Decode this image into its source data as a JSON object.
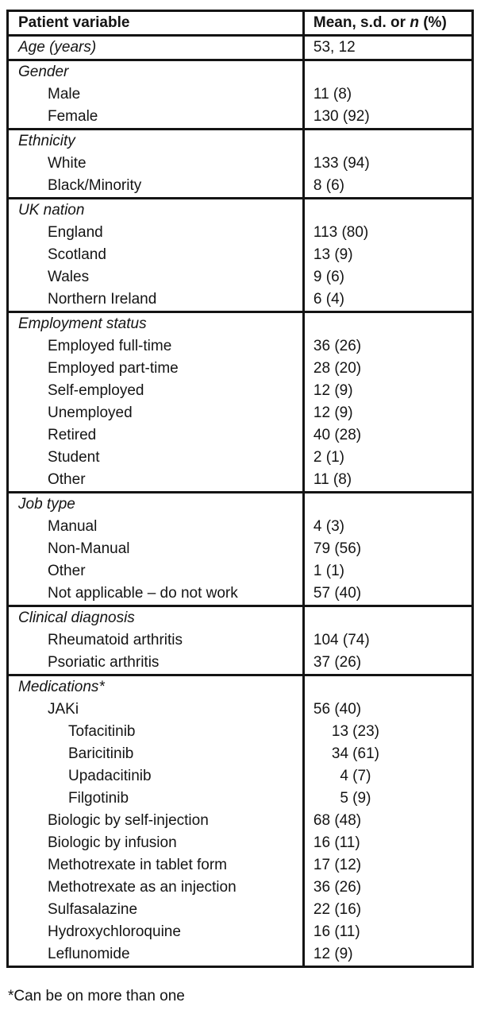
{
  "table": {
    "header": {
      "col1": "Patient variable",
      "col2_prefix": "Mean, s.d. or ",
      "col2_italic": "n",
      "col2_suffix": " (%)"
    },
    "sections": [
      {
        "id": "age",
        "rows": [
          {
            "label": "Age (years)",
            "level": 0,
            "italic": true,
            "value": "53, 12"
          }
        ]
      },
      {
        "id": "gender",
        "rows": [
          {
            "label": "Gender",
            "level": 0,
            "italic": true,
            "value": ""
          },
          {
            "label": "Male",
            "level": 1,
            "value": "11 (8)"
          },
          {
            "label": "Female",
            "level": 1,
            "value": "130 (92)"
          }
        ]
      },
      {
        "id": "ethnicity",
        "rows": [
          {
            "label": "Ethnicity",
            "level": 0,
            "italic": true,
            "value": ""
          },
          {
            "label": "White",
            "level": 1,
            "value": "133 (94)"
          },
          {
            "label": "Black/Minority",
            "level": 1,
            "value": "8 (6)"
          }
        ]
      },
      {
        "id": "uk-nation",
        "rows": [
          {
            "label": "UK nation",
            "level": 0,
            "italic": true,
            "value": ""
          },
          {
            "label": "England",
            "level": 1,
            "value": "113 (80)"
          },
          {
            "label": "Scotland",
            "level": 1,
            "value": "13 (9)"
          },
          {
            "label": "Wales",
            "level": 1,
            "value": "9 (6)"
          },
          {
            "label": "Northern Ireland",
            "level": 1,
            "value": "6 (4)"
          }
        ]
      },
      {
        "id": "employment-status",
        "rows": [
          {
            "label": "Employment status",
            "level": 0,
            "italic": true,
            "value": ""
          },
          {
            "label": "Employed full-time",
            "level": 1,
            "value": "36 (26)"
          },
          {
            "label": "Employed part-time",
            "level": 1,
            "value": "28 (20)"
          },
          {
            "label": "Self-employed",
            "level": 1,
            "value": "12 (9)"
          },
          {
            "label": "Unemployed",
            "level": 1,
            "value": "12 (9)"
          },
          {
            "label": "Retired",
            "level": 1,
            "value": "40 (28)"
          },
          {
            "label": "Student",
            "level": 1,
            "value": "2 (1)"
          },
          {
            "label": "Other",
            "level": 1,
            "value": "11 (8)"
          }
        ]
      },
      {
        "id": "job-type",
        "rows": [
          {
            "label": "Job type",
            "level": 0,
            "italic": true,
            "value": ""
          },
          {
            "label": "Manual",
            "level": 1,
            "value": "4 (3)"
          },
          {
            "label": "Non-Manual",
            "level": 1,
            "value": "79 (56)"
          },
          {
            "label": "Other",
            "level": 1,
            "value": "1 (1)"
          },
          {
            "label": "Not applicable – do not work",
            "level": 1,
            "value": "57 (40)"
          }
        ]
      },
      {
        "id": "clinical-diagnosis",
        "rows": [
          {
            "label": "Clinical diagnosis",
            "level": 0,
            "italic": true,
            "value": ""
          },
          {
            "label": "Rheumatoid arthritis",
            "level": 1,
            "value": "104 (74)"
          },
          {
            "label": "Psoriatic arthritis",
            "level": 1,
            "value": "37 (26)"
          }
        ]
      },
      {
        "id": "medications",
        "rows": [
          {
            "label": "Medications*",
            "level": 0,
            "italic": true,
            "value": ""
          },
          {
            "label": "JAKi",
            "level": 1,
            "value": "56 (40)"
          },
          {
            "label": "Tofacitinib",
            "level": 2,
            "value": "13 (23)",
            "value_indent": true
          },
          {
            "label": "Baricitinib",
            "level": 2,
            "value": "34 (61)",
            "value_indent": true
          },
          {
            "label": "Upadacitinib",
            "level": 2,
            "value": "4 (7)",
            "value_indent": true
          },
          {
            "label": "Filgotinib",
            "level": 2,
            "value": "5 (9)",
            "value_indent": true
          },
          {
            "label": "Biologic by self-injection",
            "level": 1,
            "value": "68 (48)"
          },
          {
            "label": "Biologic by infusion",
            "level": 1,
            "value": "16 (11)"
          },
          {
            "label": "Methotrexate in tablet form",
            "level": 1,
            "value": "17 (12)"
          },
          {
            "label": "Methotrexate as an injection",
            "level": 1,
            "value": "36 (26)"
          },
          {
            "label": "Sulfasalazine",
            "level": 1,
            "value": "22 (16)"
          },
          {
            "label": "Hydroxychloroquine",
            "level": 1,
            "value": "16 (11)"
          },
          {
            "label": "Leflunomide",
            "level": 1,
            "value": "12 (9)"
          }
        ]
      }
    ]
  },
  "footnote": "*Can be on more than one",
  "colors": {
    "text": "#141414",
    "border": "#141414",
    "background": "#ffffff"
  }
}
